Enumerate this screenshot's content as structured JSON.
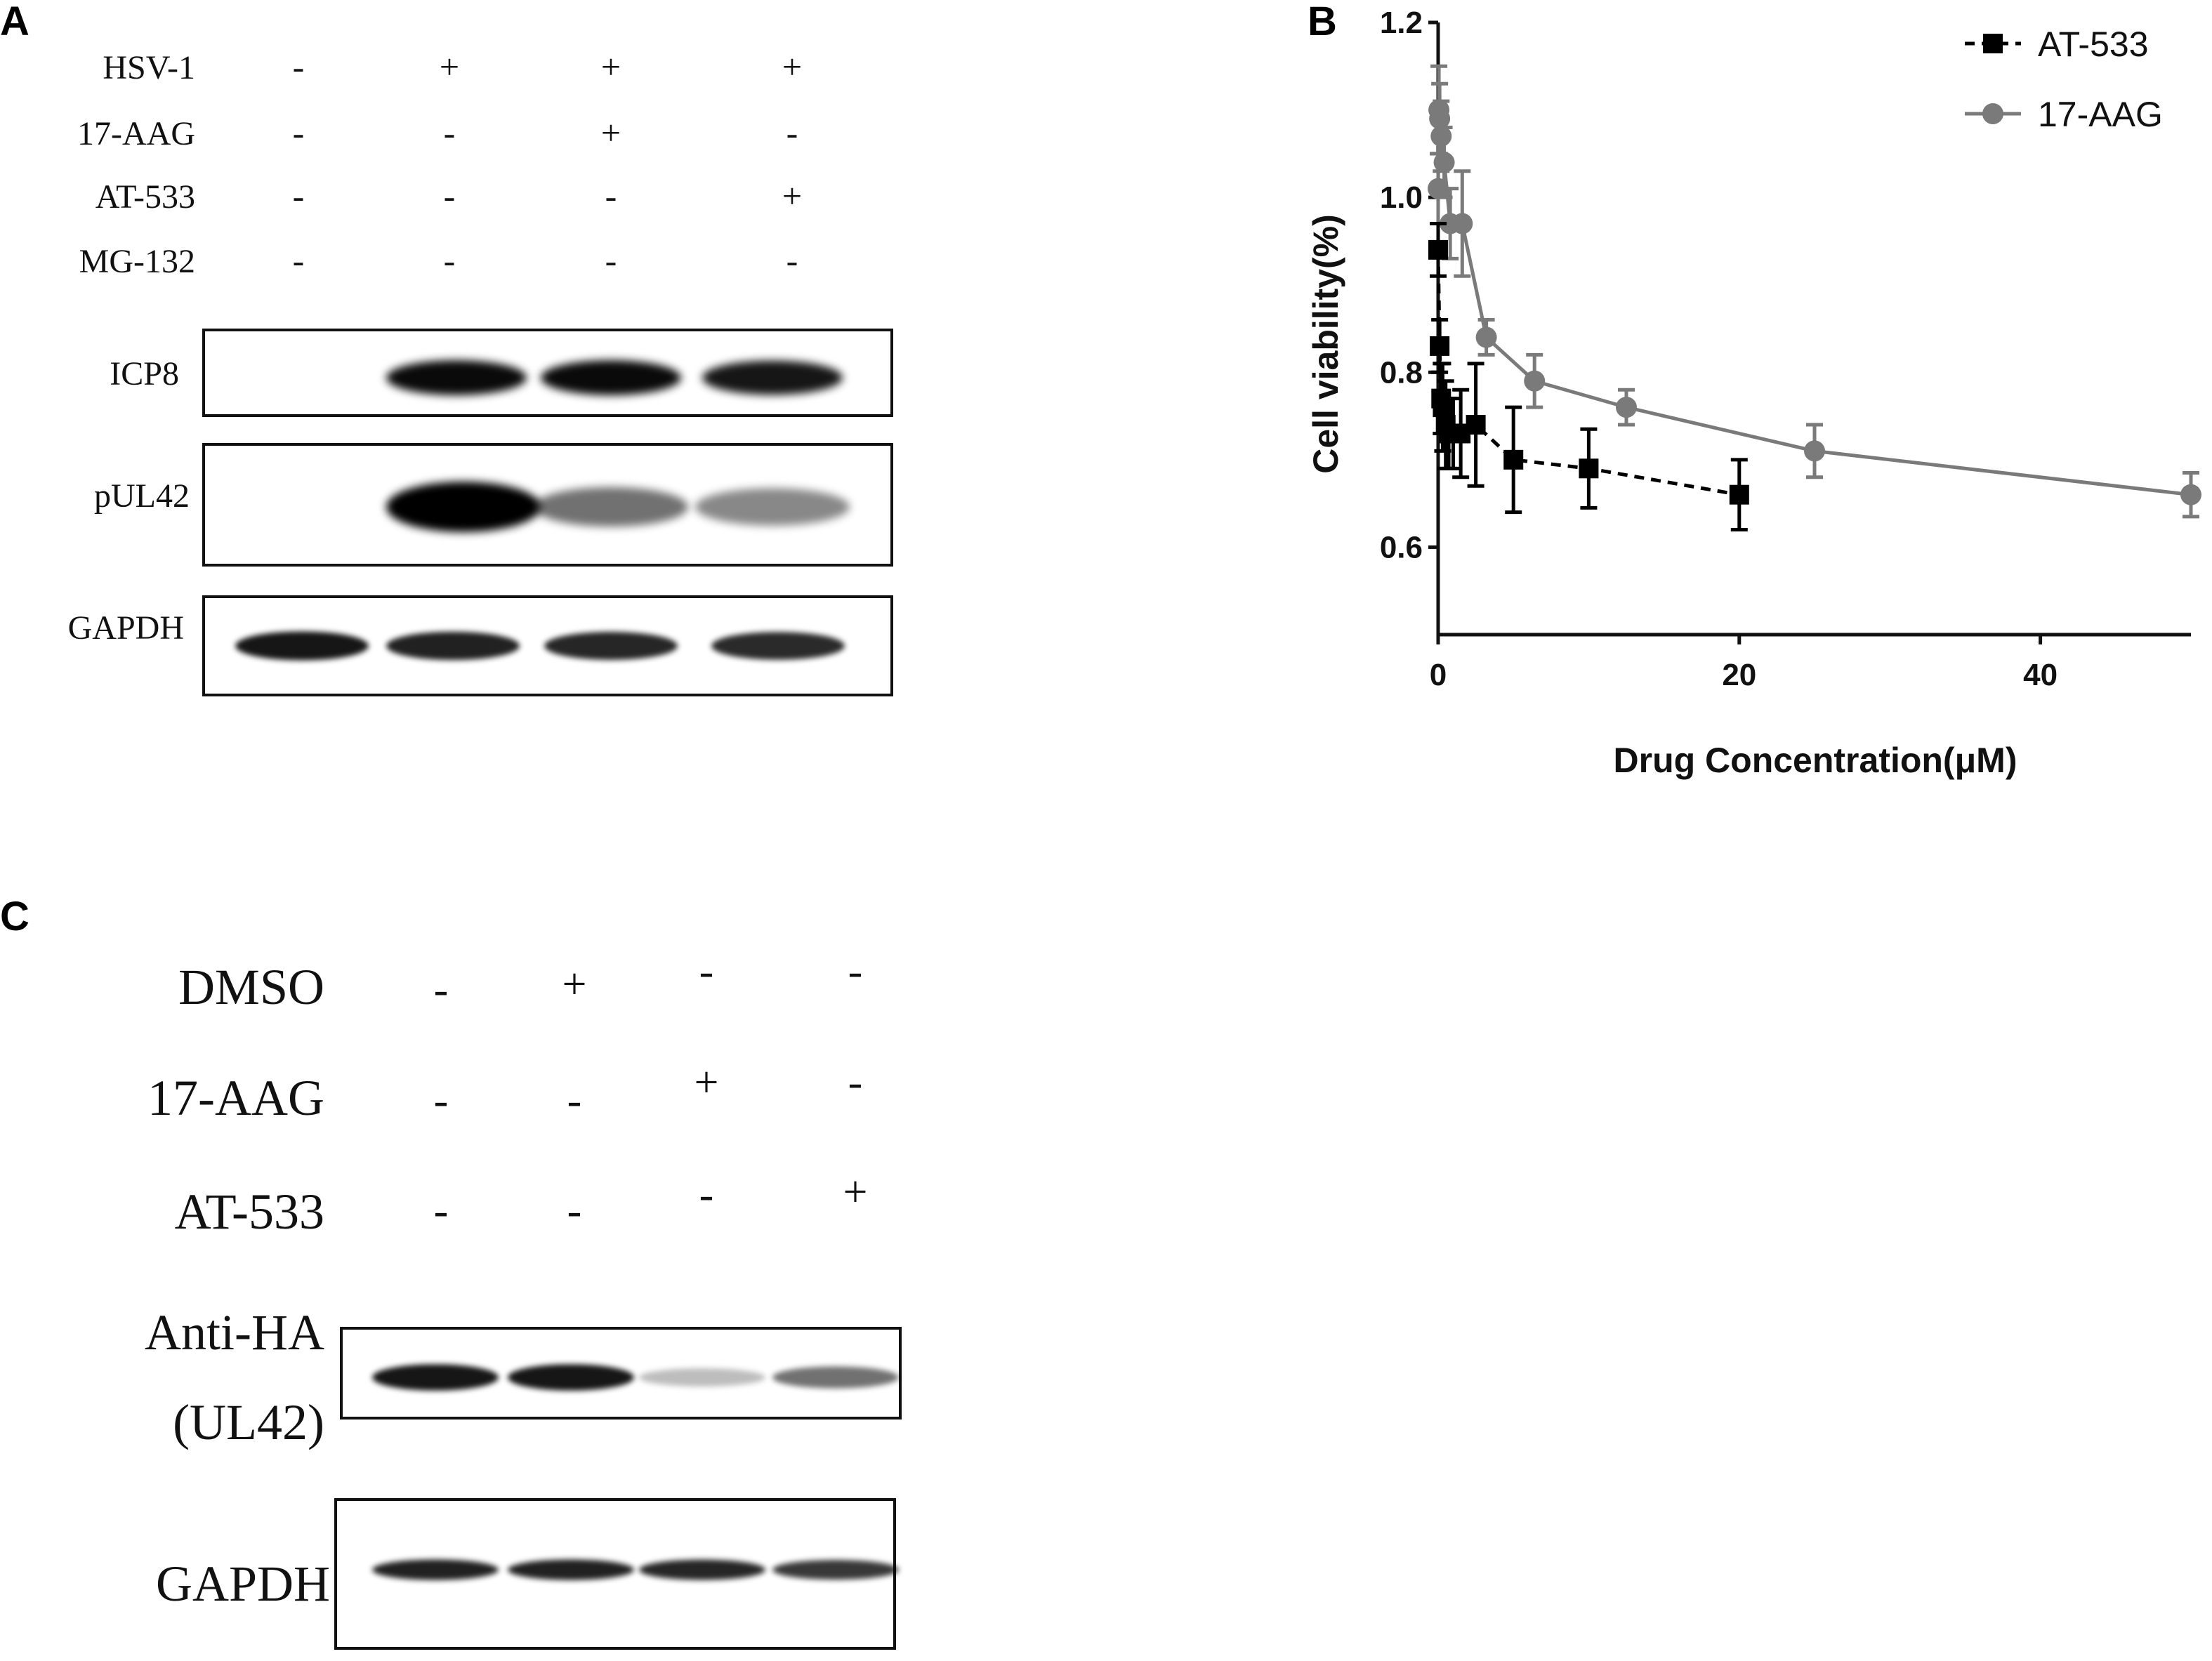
{
  "panel_a": {
    "letter": "A",
    "conditions": [
      {
        "label": "HSV-1",
        "signs": [
          "-",
          "+",
          "+",
          "+"
        ]
      },
      {
        "label": "17-AAG",
        "signs": [
          "-",
          "-",
          "+",
          "-"
        ]
      },
      {
        "label": "AT-533",
        "signs": [
          "-",
          "-",
          "-",
          "+"
        ]
      },
      {
        "label": "MG-132",
        "signs": [
          "-",
          "-",
          "-",
          "-"
        ]
      }
    ],
    "blots": [
      {
        "label": "ICP8",
        "intensity": [
          0.0,
          0.9,
          0.9,
          0.85
        ]
      },
      {
        "label": "pUL42",
        "intensity": [
          0.0,
          1.0,
          0.45,
          0.35
        ]
      },
      {
        "label": "GAPDH",
        "intensity": [
          0.85,
          0.8,
          0.78,
          0.76
        ]
      }
    ]
  },
  "panel_b": {
    "letter": "B",
    "chart_data": {
      "type": "line",
      "xlabel": "Drug Concentration(μM)",
      "ylabel": "Cell viability(%)",
      "xlim": [
        0,
        50
      ],
      "ylim": [
        0.5,
        1.2
      ],
      "xticks": [
        "0",
        "20",
        "40"
      ],
      "yticks": [
        "0.6",
        "0.8",
        "1.0",
        "1.2"
      ],
      "legend_position": "top-right",
      "series": [
        {
          "name": "AT-533",
          "color": "#000000",
          "marker": "square",
          "line_style": "dashed",
          "points": [
            {
              "x": 0.0,
              "y": 0.94,
              "err": 0.03
            },
            {
              "x": 0.1,
              "y": 0.83,
              "err": 0.03
            },
            {
              "x": 0.2,
              "y": 0.77,
              "err": 0.04
            },
            {
              "x": 0.3,
              "y": 0.76,
              "err": 0.05
            },
            {
              "x": 0.5,
              "y": 0.74,
              "err": 0.05
            },
            {
              "x": 0.7,
              "y": 0.73,
              "err": 0.04
            },
            {
              "x": 1.0,
              "y": 0.73,
              "err": 0.04
            },
            {
              "x": 1.5,
              "y": 0.73,
              "err": 0.05
            },
            {
              "x": 2.5,
              "y": 0.74,
              "err": 0.07
            },
            {
              "x": 5.0,
              "y": 0.7,
              "err": 0.06
            },
            {
              "x": 10.0,
              "y": 0.69,
              "err": 0.045
            },
            {
              "x": 20.0,
              "y": 0.66,
              "err": 0.04
            }
          ]
        },
        {
          "name": "17-AAG",
          "color": "#7a7a7a",
          "marker": "circle",
          "line_style": "solid",
          "points": [
            {
              "x": 0.0,
              "y": 1.01,
              "err": 0.04
            },
            {
              "x": 0.05,
              "y": 1.1,
              "err": 0.05
            },
            {
              "x": 0.1,
              "y": 1.09,
              "err": 0.04
            },
            {
              "x": 0.2,
              "y": 1.07,
              "err": 0.04
            },
            {
              "x": 0.4,
              "y": 1.04,
              "err": 0.04
            },
            {
              "x": 0.8,
              "y": 0.97,
              "err": 0.04
            },
            {
              "x": 1.6,
              "y": 0.97,
              "err": 0.06
            },
            {
              "x": 3.2,
              "y": 0.84,
              "err": 0.02
            },
            {
              "x": 6.4,
              "y": 0.79,
              "err": 0.03
            },
            {
              "x": 12.5,
              "y": 0.76,
              "err": 0.02
            },
            {
              "x": 25.0,
              "y": 0.71,
              "err": 0.03
            },
            {
              "x": 50.0,
              "y": 0.66,
              "err": 0.025
            }
          ]
        }
      ]
    }
  },
  "panel_c": {
    "letter": "C",
    "conditions": [
      {
        "label": "DMSO",
        "signs": [
          "-",
          "+",
          "-",
          "-"
        ]
      },
      {
        "label": "17-AAG",
        "signs": [
          "-",
          "-",
          "+",
          "-"
        ]
      },
      {
        "label": "AT-533",
        "signs": [
          "-",
          "-",
          "-",
          "+"
        ]
      }
    ],
    "blots": [
      {
        "label_line1": "Anti-HA",
        "label_line2": "(UL42)",
        "intensity": [
          0.85,
          0.85,
          0.12,
          0.45
        ]
      },
      {
        "label_line1": "GAPDH",
        "label_line2": "",
        "intensity": [
          0.8,
          0.8,
          0.78,
          0.7
        ]
      }
    ]
  }
}
